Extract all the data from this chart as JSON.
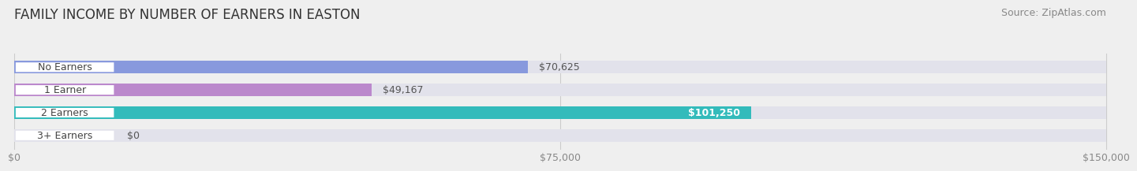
{
  "title": "FAMILY INCOME BY NUMBER OF EARNERS IN EASTON",
  "source": "Source: ZipAtlas.com",
  "categories": [
    "No Earners",
    "1 Earner",
    "2 Earners",
    "3+ Earners"
  ],
  "values": [
    70625,
    49167,
    101250,
    0
  ],
  "bar_colors": [
    "#8899dd",
    "#bb88cc",
    "#33bbbb",
    "#aabbee"
  ],
  "value_labels": [
    "$70,625",
    "$49,167",
    "$101,250",
    "$0"
  ],
  "value_label_inside": [
    false,
    false,
    true,
    false
  ],
  "xmax": 150000,
  "xticks": [
    0,
    75000,
    150000
  ],
  "xticklabels": [
    "$0",
    "$75,000",
    "$150,000"
  ],
  "bg_color": "#efefef",
  "bar_bg_color": "#e2e2eb",
  "title_fontsize": 12,
  "source_fontsize": 9,
  "tick_fontsize": 9,
  "label_fontsize": 9,
  "value_fontsize": 9
}
